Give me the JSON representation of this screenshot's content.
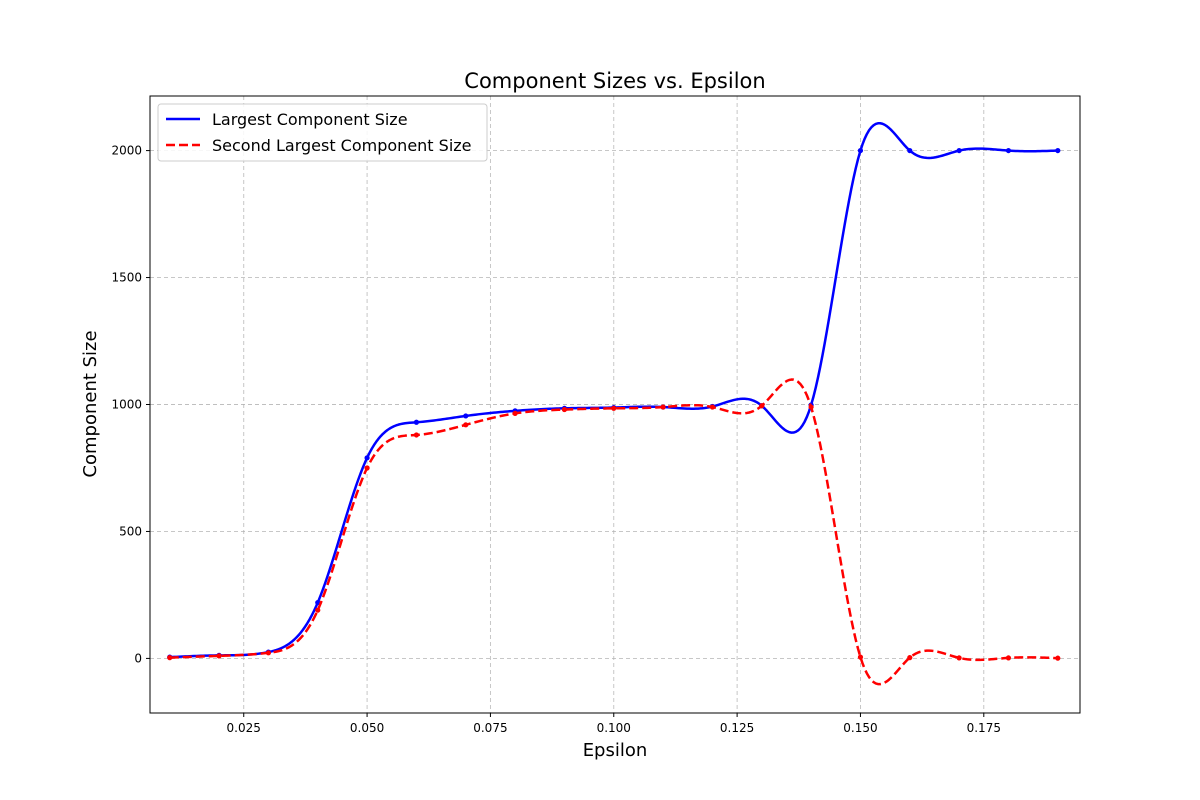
{
  "chart_data": {
    "type": "line",
    "title": "Component Sizes vs. Epsilon",
    "xlabel": "Epsilon",
    "ylabel": "Component Size",
    "xlim": [
      0.006,
      0.1945
    ],
    "ylim": [
      -215,
      2215
    ],
    "x_ticks": [
      0.025,
      0.05,
      0.075,
      0.1,
      0.125,
      0.15,
      0.175
    ],
    "x_tick_labels": [
      "0.025",
      "0.050",
      "0.075",
      "0.100",
      "0.125",
      "0.150",
      "0.175"
    ],
    "y_ticks": [
      0,
      500,
      1000,
      1500,
      2000
    ],
    "y_tick_labels": [
      "0",
      "500",
      "1000",
      "1500",
      "2000"
    ],
    "grid": true,
    "legend_position": "upper-left",
    "x": [
      0.01,
      0.02,
      0.03,
      0.04,
      0.05,
      0.06,
      0.07,
      0.08,
      0.09,
      0.1,
      0.11,
      0.12,
      0.13,
      0.14,
      0.15,
      0.16,
      0.17,
      0.18,
      0.19
    ],
    "series": [
      {
        "name": "Largest Component Size",
        "color": "#0000ff",
        "style": "solid",
        "values": [
          5,
          12,
          25,
          220,
          790,
          930,
          955,
          975,
          985,
          988,
          990,
          992,
          995,
          998,
          2000,
          2000,
          2000,
          2000,
          2000
        ]
      },
      {
        "name": "Second Largest Component Size",
        "color": "#ff0000",
        "style": "dashed",
        "values": [
          3,
          10,
          22,
          190,
          750,
          880,
          920,
          965,
          980,
          985,
          990,
          990,
          995,
          990,
          5,
          3,
          2,
          2,
          1
        ]
      }
    ]
  }
}
